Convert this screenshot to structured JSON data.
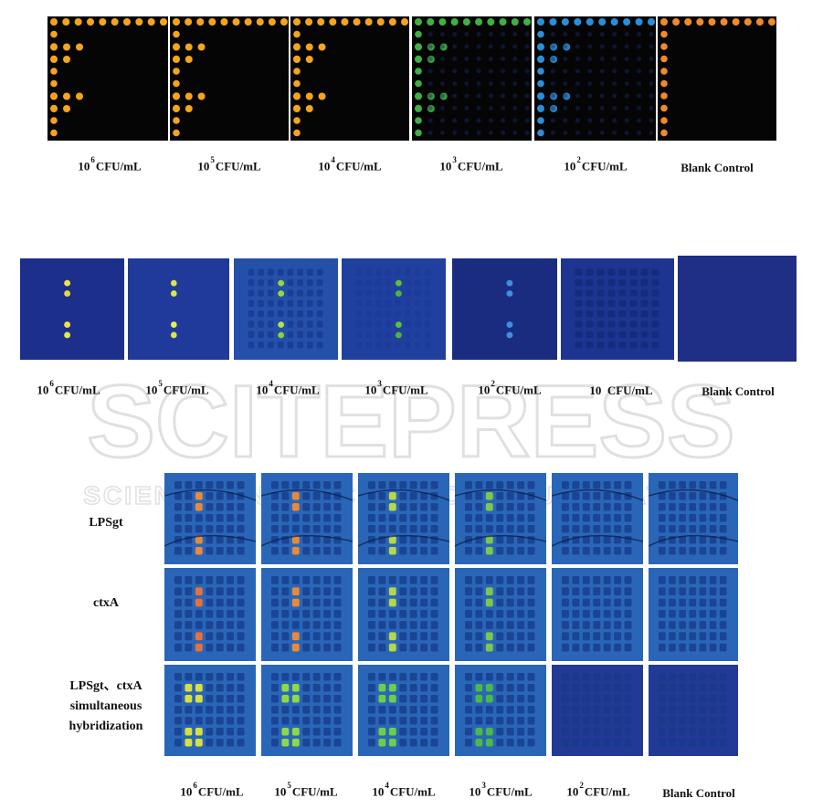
{
  "figure_a": {
    "labels": [
      {
        "base": "10",
        "exp": "6",
        "unit": "CFU/mL"
      },
      {
        "base": "10",
        "exp": "5",
        "unit": "CFU/mL"
      },
      {
        "base": "10",
        "exp": "4",
        "unit": "CFU/mL"
      },
      {
        "base": "10",
        "exp": "3",
        "unit": "CFU/mL"
      },
      {
        "base": "10",
        "exp": "2",
        "unit": "CFU/mL"
      },
      {
        "base": "Blank Control",
        "exp": "",
        "unit": ""
      }
    ],
    "spot_colors": [
      "#f5a41c",
      "#f5a41c",
      "#f5a41c",
      "#3fb044",
      "#2a8fd8",
      "#f08a2a"
    ]
  },
  "figure_b": {
    "labels": [
      {
        "base": "10",
        "exp": "6",
        "unit": "CFU/mL"
      },
      {
        "base": "10",
        "exp": "5",
        "unit": "CFU/mL"
      },
      {
        "base": "10",
        "exp": "4",
        "unit": "CFU/mL"
      },
      {
        "base": "10",
        "exp": "3",
        "unit": "CFU/mL"
      },
      {
        "base": "10",
        "exp": "2",
        "unit": "CFU/mL"
      },
      {
        "base": "10",
        "exp": "",
        "unit": "CFU/mL"
      },
      {
        "base": "Blank Control",
        "exp": "",
        "unit": ""
      }
    ]
  },
  "figure_c": {
    "row_labels": [
      [
        "LPSgt"
      ],
      [
        "ctxA"
      ],
      [
        "LPSgt、ctxA",
        "simultaneous",
        "hybridization"
      ]
    ],
    "labels": [
      {
        "base": "10",
        "exp": "6",
        "unit": "CFU/mL"
      },
      {
        "base": "10",
        "exp": "5",
        "unit": "CFU/mL"
      },
      {
        "base": "10",
        "exp": "4",
        "unit": "CFU/mL"
      },
      {
        "base": "10",
        "exp": "3",
        "unit": "CFU/mL"
      },
      {
        "base": "10",
        "exp": "2",
        "unit": "CFU/mL"
      },
      {
        "base": "Blank Control",
        "exp": "",
        "unit": ""
      }
    ]
  },
  "watermark": {
    "main": "SCITEPRESS",
    "sub": "SCIENCE AND TECHNOLOGY PUBLICATIONS"
  },
  "colors": {
    "dark_bg": "#050505",
    "blue_bg": "#1c2f8a",
    "blue_bg_light": "#2762b8"
  }
}
